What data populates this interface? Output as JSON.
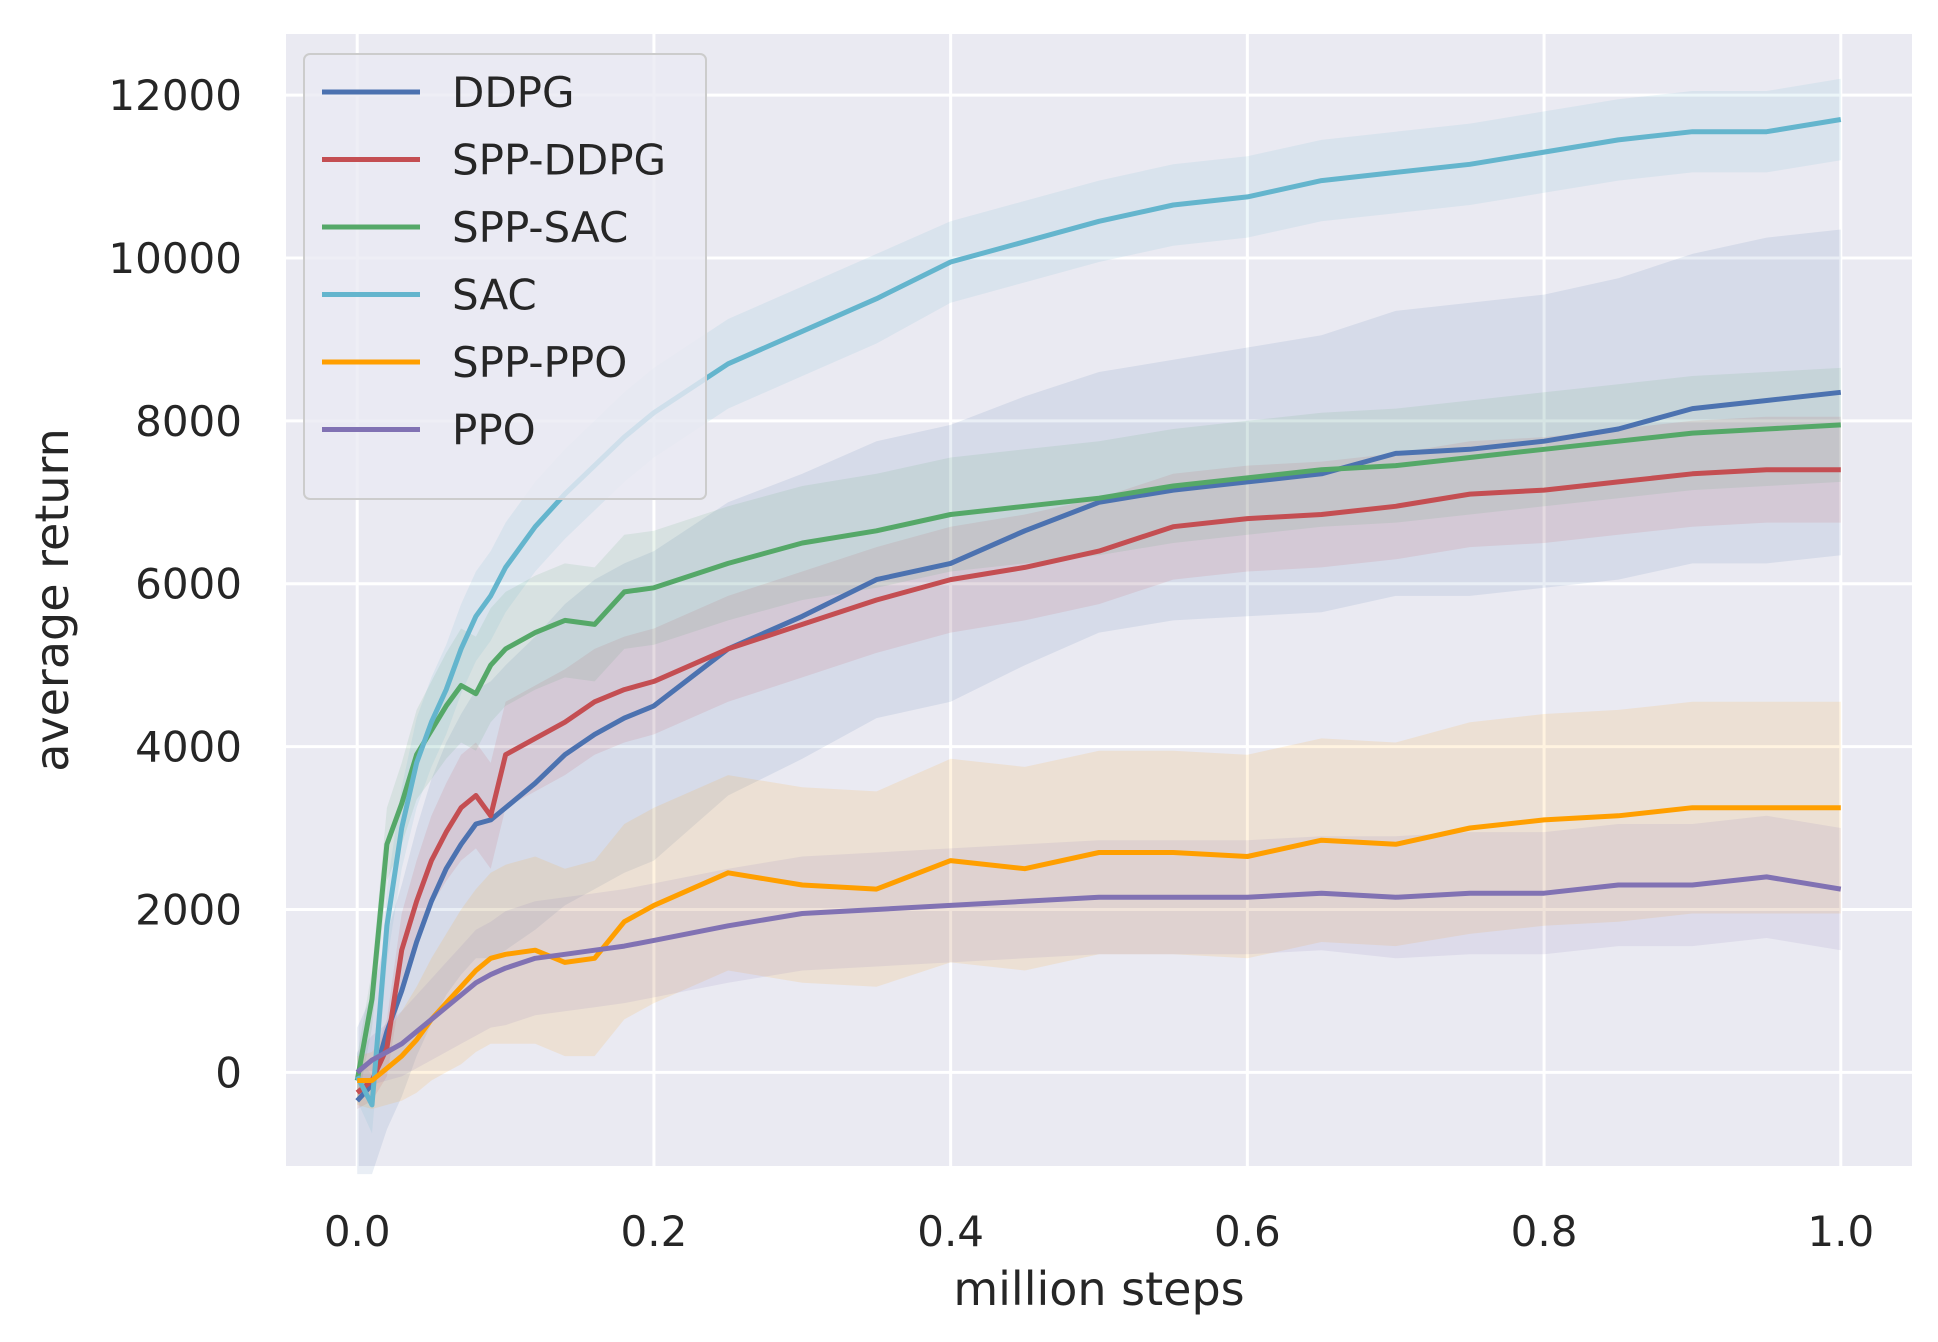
{
  "chart_data": {
    "type": "line",
    "title": "",
    "xlabel": "million steps",
    "ylabel": "average return",
    "xlim": [
      -0.048,
      1.048
    ],
    "ylim": [
      -1150,
      12750
    ],
    "xticks": [
      0.0,
      0.2,
      0.4,
      0.6,
      0.8,
      1.0
    ],
    "xtick_labels": [
      "0.0",
      "0.2",
      "0.4",
      "0.6",
      "0.8",
      "1.0"
    ],
    "yticks": [
      0,
      2000,
      4000,
      6000,
      8000,
      10000,
      12000
    ],
    "ytick_labels": [
      "0",
      "2000",
      "4000",
      "6000",
      "8000",
      "10000",
      "12000"
    ],
    "grid": true,
    "background": "#eaeaf2",
    "legend_position": "top-left",
    "x": [
      0.0,
      0.01,
      0.02,
      0.03,
      0.04,
      0.05,
      0.06,
      0.07,
      0.08,
      0.09,
      0.1,
      0.12,
      0.14,
      0.16,
      0.18,
      0.2,
      0.25,
      0.3,
      0.35,
      0.4,
      0.45,
      0.5,
      0.55,
      0.6,
      0.65,
      0.7,
      0.75,
      0.8,
      0.85,
      0.9,
      0.95,
      1.0
    ],
    "series": [
      {
        "name": "DDPG",
        "color": "#4c72b0",
        "values": [
          -350,
          -150,
          500,
          1000,
          1600,
          2100,
          2500,
          2800,
          3050,
          3100,
          3250,
          3550,
          3900,
          4150,
          4350,
          4500,
          5200,
          5600,
          6050,
          6250,
          6650,
          7000,
          7150,
          7250,
          7350,
          7600,
          7650,
          7750,
          7900,
          8150,
          8250,
          8350
        ],
        "band": [
          900,
          1100,
          1200,
          1300,
          1400,
          1500,
          1550,
          1600,
          1650,
          1700,
          1750,
          1800,
          1850,
          1900,
          1900,
          1900,
          1800,
          1750,
          1700,
          1700,
          1650,
          1600,
          1600,
          1650,
          1700,
          1750,
          1800,
          1800,
          1850,
          1900,
          2000,
          2000
        ]
      },
      {
        "name": "SPP-DDPG",
        "color": "#c44e52",
        "values": [
          -250,
          -100,
          300,
          1500,
          2100,
          2600,
          2950,
          3250,
          3400,
          3150,
          3900,
          4100,
          4300,
          4550,
          4700,
          4800,
          5200,
          5500,
          5800,
          6050,
          6200,
          6400,
          6700,
          6800,
          6850,
          6950,
          7100,
          7150,
          7250,
          7350,
          7400,
          7400
        ],
        "band": [
          200,
          250,
          350,
          450,
          500,
          550,
          600,
          650,
          650,
          650,
          650,
          650,
          650,
          650,
          650,
          650,
          650,
          650,
          650,
          650,
          650,
          650,
          650,
          650,
          650,
          650,
          650,
          650,
          650,
          650,
          650,
          650
        ]
      },
      {
        "name": "SPP-SAC",
        "color": "#55a868",
        "values": [
          -100,
          900,
          2800,
          3300,
          3900,
          4200,
          4500,
          4750,
          4650,
          5000,
          5200,
          5400,
          5550,
          5500,
          5900,
          5950,
          6250,
          6500,
          6650,
          6850,
          6950,
          7050,
          7200,
          7300,
          7400,
          7450,
          7550,
          7650,
          7750,
          7850,
          7900,
          7950
        ],
        "band": [
          300,
          350,
          450,
          500,
          550,
          600,
          650,
          700,
          700,
          700,
          700,
          700,
          700,
          700,
          700,
          700,
          700,
          700,
          700,
          700,
          700,
          700,
          700,
          700,
          700,
          700,
          700,
          700,
          700,
          700,
          700,
          700
        ]
      },
      {
        "name": "SAC",
        "color": "#64b5cd",
        "values": [
          -50,
          -400,
          1800,
          3000,
          3800,
          4300,
          4700,
          5200,
          5600,
          5850,
          6200,
          6700,
          7100,
          7450,
          7800,
          8100,
          8700,
          9100,
          9500,
          9950,
          10200,
          10450,
          10650,
          10750,
          10950,
          11050,
          11150,
          11300,
          11450,
          11550,
          11550,
          11700
        ],
        "band": [
          300,
          350,
          450,
          500,
          550,
          550,
          550,
          550,
          550,
          550,
          550,
          550,
          550,
          550,
          550,
          550,
          550,
          550,
          550,
          500,
          500,
          500,
          500,
          500,
          500,
          500,
          500,
          500,
          500,
          500,
          500,
          500
        ]
      },
      {
        "name": "SPP-PPO",
        "color": "#ff9f00",
        "values": [
          -100,
          -100,
          50,
          200,
          400,
          650,
          850,
          1050,
          1250,
          1400,
          1450,
          1500,
          1350,
          1400,
          1850,
          2050,
          2450,
          2300,
          2250,
          2600,
          2500,
          2700,
          2700,
          2650,
          2850,
          2800,
          3000,
          3100,
          3150,
          3250,
          3250,
          3250
        ],
        "band": [
          300,
          350,
          450,
          550,
          650,
          750,
          850,
          950,
          1000,
          1050,
          1100,
          1150,
          1150,
          1200,
          1200,
          1200,
          1200,
          1200,
          1200,
          1250,
          1250,
          1250,
          1250,
          1250,
          1250,
          1250,
          1300,
          1300,
          1300,
          1300,
          1300,
          1300
        ]
      },
      {
        "name": "PPO",
        "color": "#8172b3",
        "values": [
          0,
          150,
          250,
          350,
          500,
          650,
          800,
          950,
          1100,
          1200,
          1280,
          1400,
          1450,
          1500,
          1550,
          1620,
          1800,
          1950,
          2000,
          2050,
          2100,
          2150,
          2150,
          2150,
          2200,
          2150,
          2200,
          2200,
          2300,
          2300,
          2400,
          2250
        ],
        "band": [
          250,
          300,
          350,
          400,
          450,
          500,
          550,
          600,
          650,
          650,
          700,
          700,
          700,
          700,
          700,
          700,
          700,
          700,
          700,
          700,
          700,
          700,
          700,
          700,
          700,
          750,
          750,
          750,
          750,
          750,
          750,
          750
        ]
      }
    ]
  }
}
